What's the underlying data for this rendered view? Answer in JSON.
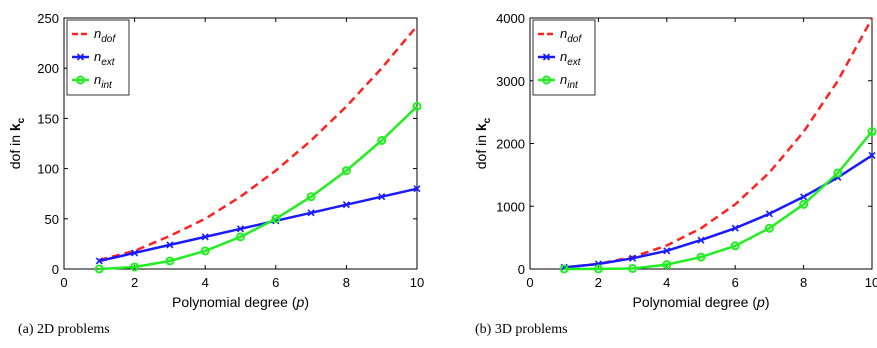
{
  "chart_data": [
    {
      "type": "line",
      "caption": "(a) 2D problems",
      "xlabel": "Polynomial degree (p)",
      "xlabel_parts": [
        "Polynomial degree (",
        "p",
        ")"
      ],
      "ylabel": "dof in k_c",
      "ylabel_parts": [
        "dof in ",
        "k",
        "c"
      ],
      "xlim": [
        0,
        10
      ],
      "ylim": [
        0,
        250
      ],
      "xticks": [
        0,
        2,
        4,
        6,
        8,
        10
      ],
      "yticks": [
        0,
        50,
        100,
        150,
        200,
        250
      ],
      "grid": false,
      "legend_position": "top-left",
      "series": [
        {
          "name": "n_dof",
          "base": "n",
          "sub": "dof",
          "color": "#ff2222",
          "style": "dashed",
          "marker": "none",
          "x": [
            1,
            2,
            3,
            4,
            5,
            6,
            7,
            8,
            9,
            10
          ],
          "y": [
            9,
            18,
            33,
            50,
            72,
            98,
            128,
            162,
            200,
            242
          ]
        },
        {
          "name": "n_ext",
          "base": "n",
          "sub": "ext",
          "color": "#1a1aff",
          "style": "solid",
          "marker": "x",
          "x": [
            1,
            2,
            3,
            4,
            5,
            6,
            7,
            8,
            9,
            10
          ],
          "y": [
            8,
            16,
            24,
            32,
            40,
            48,
            56,
            64,
            72,
            80
          ]
        },
        {
          "name": "n_int",
          "base": "n",
          "sub": "int",
          "color": "#22ee22",
          "style": "solid",
          "marker": "circle",
          "x": [
            1,
            2,
            3,
            4,
            5,
            6,
            7,
            8,
            9,
            10
          ],
          "y": [
            0,
            2,
            8,
            18,
            32,
            50,
            72,
            98,
            128,
            162
          ]
        }
      ]
    },
    {
      "type": "line",
      "caption": "(b) 3D problems",
      "xlabel": "Polynomial degree (p)",
      "xlabel_parts": [
        "Polynomial degree (",
        "p",
        ")"
      ],
      "ylabel": "dof in k_c",
      "ylabel_parts": [
        "dof in ",
        "k",
        "c"
      ],
      "xlim": [
        0,
        10
      ],
      "ylim": [
        0,
        4000
      ],
      "xticks": [
        0,
        2,
        4,
        6,
        8,
        10
      ],
      "yticks": [
        0,
        1000,
        2000,
        3000,
        4000
      ],
      "grid": false,
      "legend_position": "top-left",
      "series": [
        {
          "name": "n_dof",
          "base": "n",
          "sub": "dof",
          "color": "#ff2222",
          "style": "dashed",
          "marker": "none",
          "x": [
            1,
            2,
            3,
            4,
            5,
            6,
            7,
            8,
            9,
            10
          ],
          "y": [
            24,
            81,
            192,
            375,
            648,
            1029,
            1536,
            2187,
            3000,
            3993
          ]
        },
        {
          "name": "n_ext",
          "base": "n",
          "sub": "ext",
          "color": "#1a1aff",
          "style": "solid",
          "marker": "x",
          "x": [
            1,
            2,
            3,
            4,
            5,
            6,
            7,
            8,
            9,
            10
          ],
          "y": [
            26,
            80,
            170,
            290,
            460,
            650,
            880,
            1150,
            1460,
            1810
          ]
        },
        {
          "name": "n_int",
          "base": "n",
          "sub": "int",
          "color": "#22ee22",
          "style": "solid",
          "marker": "circle",
          "x": [
            1,
            2,
            3,
            4,
            5,
            6,
            7,
            8,
            9,
            10
          ],
          "y": [
            0,
            1,
            8,
            70,
            190,
            370,
            650,
            1030,
            1530,
            2190
          ]
        }
      ]
    }
  ]
}
